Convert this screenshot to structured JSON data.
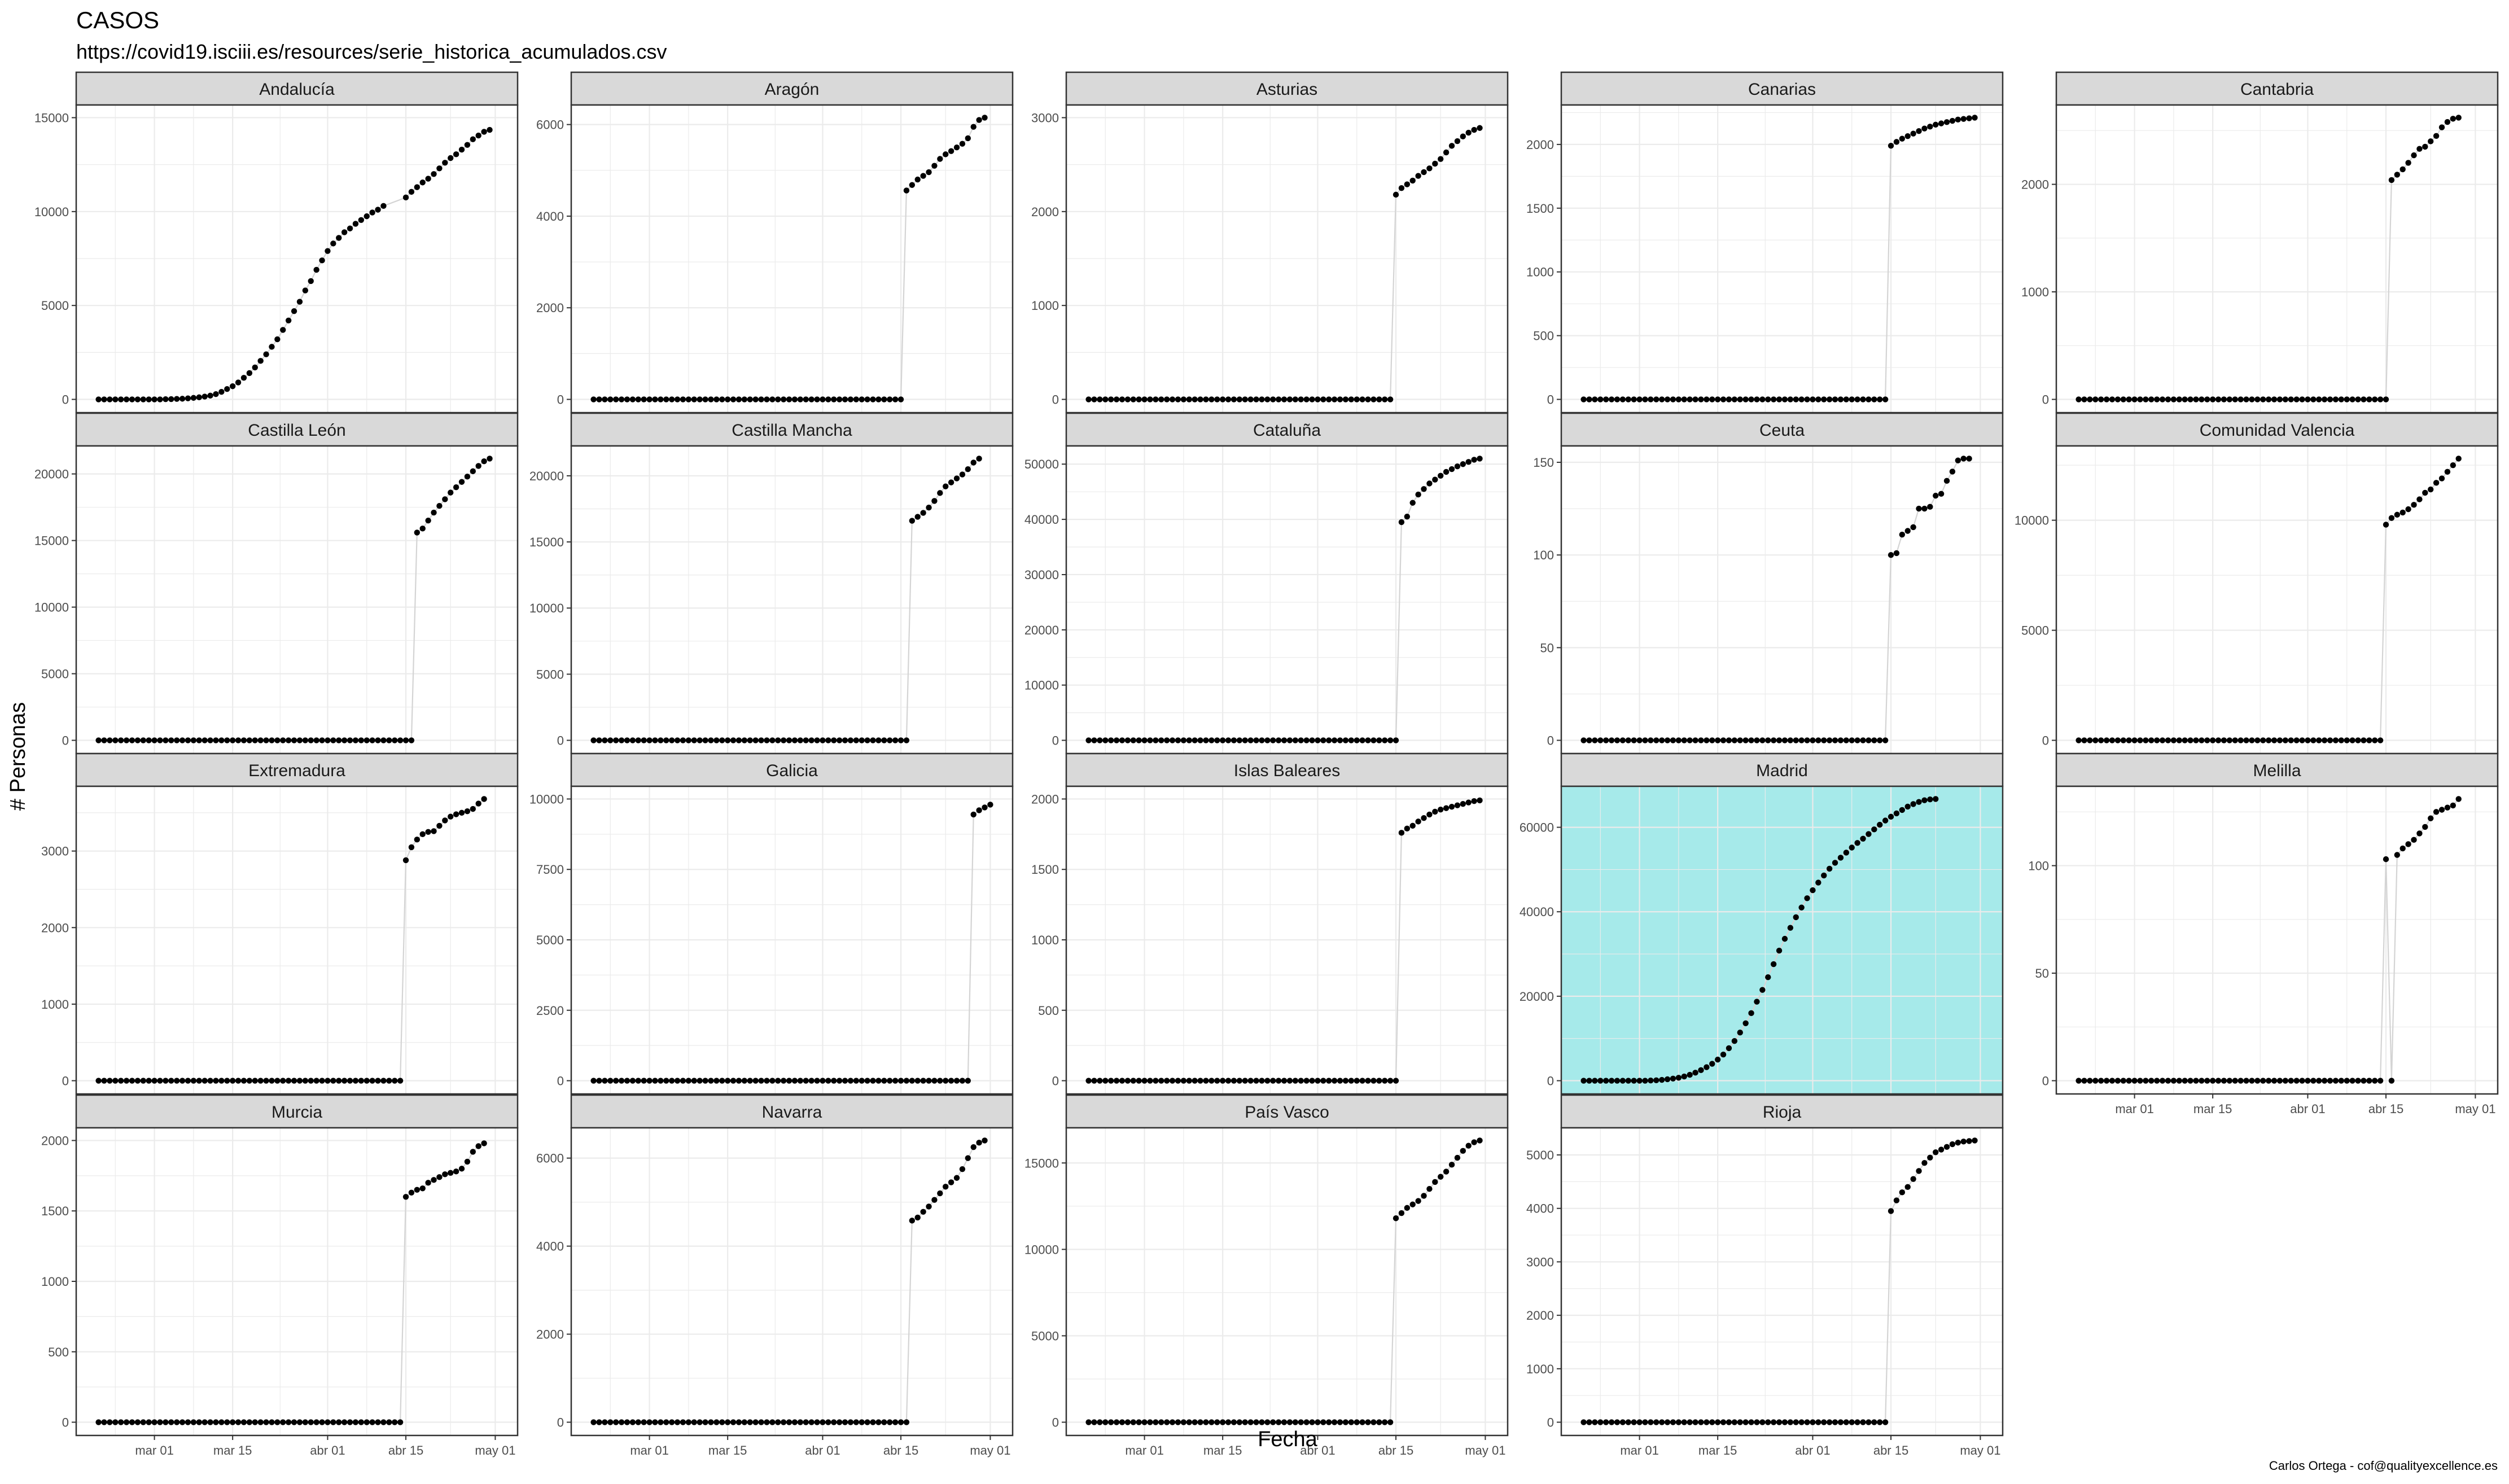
{
  "figure": {
    "title": "CASOS",
    "subtitle": "https://covid19.isciii.es/resources/serie_historica_acumulados.csv",
    "xlabel": "Fecha",
    "ylabel": "# Personas",
    "caption": "Carlos Ortega - cof@qualityexcellence.es",
    "x_ticks": [
      "mar 01",
      "mar 15",
      "abr 01",
      "abr 15",
      "may 01"
    ],
    "colors": {
      "strip_bg": "#d9d9d9",
      "panel_border": "#333333",
      "grid": "#ebebeb",
      "point": "#000000",
      "line": "#d4d4d4",
      "highlight_bg": "#a6eaea"
    }
  },
  "chart_data": [
    {
      "type": "scatter",
      "facet": "Andalucía",
      "date_start": "2020-02-20",
      "date_end": "2020-05-02",
      "jump_date": "2020-04-15",
      "ylim": [
        0,
        15000
      ],
      "y_ticks": [
        0,
        5000,
        10000,
        15000
      ],
      "pre_start": "2020-02-20",
      "pre_values": [
        0,
        0,
        0,
        0,
        0,
        0,
        0,
        0,
        0,
        0,
        0,
        0,
        10,
        15,
        25,
        35,
        55,
        80,
        110,
        150,
        200,
        280,
        400,
        550,
        700,
        900,
        1150,
        1400,
        1700,
        2050,
        2400,
        2800,
        3200,
        3700,
        4200,
        4700,
        5200,
        5800,
        6300,
        6900,
        7400,
        7900,
        8300,
        8600,
        8900,
        9100,
        9350,
        9550,
        9750,
        9950,
        10100,
        10300
      ],
      "post_start": "2020-04-15",
      "post_values": [
        10750,
        11050,
        11300,
        11550,
        11750,
        12000,
        12300,
        12600,
        12850,
        13050,
        13300,
        13550,
        13850,
        14050,
        14250,
        14350
      ]
    },
    {
      "type": "scatter",
      "facet": "Aragón",
      "date_start": "2020-02-20",
      "date_end": "2020-05-02",
      "jump_date": "2020-04-16",
      "ylim": [
        0,
        6000
      ],
      "y_ticks": [
        0,
        2000,
        4000,
        6000
      ],
      "post_start": "2020-04-16",
      "post_values": [
        4560,
        4680,
        4800,
        4880,
        4960,
        5100,
        5250,
        5350,
        5420,
        5500,
        5580,
        5700,
        5950,
        6100,
        6150
      ]
    },
    {
      "type": "scatter",
      "facet": "Asturias",
      "date_start": "2020-02-20",
      "date_end": "2020-05-02",
      "jump_date": "2020-04-15",
      "ylim": [
        0,
        3000
      ],
      "y_ticks": [
        0,
        1000,
        2000,
        3000
      ],
      "post_start": "2020-04-15",
      "post_values": [
        2180,
        2250,
        2290,
        2330,
        2380,
        2420,
        2460,
        2510,
        2560,
        2630,
        2700,
        2750,
        2800,
        2840,
        2870,
        2890
      ]
    },
    {
      "type": "scatter",
      "facet": "Canarias",
      "date_start": "2020-02-20",
      "date_end": "2020-05-02",
      "jump_date": "2020-04-15",
      "ylim": [
        0,
        2000
      ],
      "y_ticks": [
        0,
        500,
        1000,
        1500,
        2000
      ],
      "post_start": "2020-04-15",
      "post_values": [
        1990,
        2020,
        2045,
        2065,
        2085,
        2105,
        2125,
        2140,
        2155,
        2165,
        2175,
        2185,
        2195,
        2200,
        2205,
        2210
      ]
    },
    {
      "type": "scatter",
      "facet": "Cantabria",
      "date_start": "2020-02-20",
      "date_end": "2020-05-02",
      "jump_date": "2020-04-16",
      "ylim": [
        0,
        2000
      ],
      "y_ticks": [
        0,
        1000,
        2000
      ],
      "post_start": "2020-04-16",
      "post_values": [
        2040,
        2090,
        2140,
        2200,
        2270,
        2330,
        2350,
        2400,
        2450,
        2530,
        2580,
        2610,
        2620
      ]
    },
    {
      "type": "scatter",
      "facet": "Castilla León",
      "date_start": "2020-02-20",
      "date_end": "2020-05-02",
      "jump_date": "2020-04-17",
      "ylim": [
        0,
        20000
      ],
      "y_ticks": [
        0,
        5000,
        10000,
        15000,
        20000
      ],
      "post_start": "2020-04-17",
      "post_values": [
        15600,
        15900,
        16500,
        17100,
        17600,
        18100,
        18600,
        19000,
        19400,
        19800,
        20200,
        20600,
        20950,
        21150
      ]
    },
    {
      "type": "scatter",
      "facet": "Castilla Mancha",
      "date_start": "2020-02-20",
      "date_end": "2020-05-02",
      "jump_date": "2020-04-17",
      "ylim": [
        0,
        20000
      ],
      "y_ticks": [
        0,
        5000,
        10000,
        15000,
        20000
      ],
      "post_start": "2020-04-17",
      "post_values": [
        16600,
        16900,
        17200,
        17600,
        18100,
        18700,
        19200,
        19500,
        19800,
        20100,
        20500,
        21000,
        21300
      ]
    },
    {
      "type": "scatter",
      "facet": "Cataluña",
      "date_start": "2020-02-20",
      "date_end": "2020-05-02",
      "jump_date": "2020-04-16",
      "ylim": [
        0,
        50000
      ],
      "y_ticks": [
        0,
        10000,
        20000,
        30000,
        40000,
        50000
      ],
      "post_start": "2020-04-16",
      "post_values": [
        39500,
        40500,
        43000,
        44500,
        45500,
        46500,
        47200,
        47900,
        48600,
        49100,
        49600,
        50000,
        50400,
        50800,
        51000
      ]
    },
    {
      "type": "scatter",
      "facet": "Ceuta",
      "date_start": "2020-02-20",
      "date_end": "2020-05-02",
      "jump_date": "2020-04-15",
      "ylim": [
        0,
        150
      ],
      "y_ticks": [
        0,
        50,
        100,
        150
      ],
      "post_start": "2020-04-15",
      "post_values": [
        100,
        101,
        111,
        113,
        115,
        125,
        125,
        126,
        132,
        133,
        140,
        145,
        151,
        152,
        152
      ]
    },
    {
      "type": "scatter",
      "facet": "Comunidad Valencia",
      "date_start": "2020-02-20",
      "date_end": "2020-05-02",
      "jump_date": "2020-04-15",
      "ylim": [
        0,
        10000
      ],
      "y_ticks": [
        0,
        5000,
        10000
      ],
      "post_start": "2020-04-15",
      "post_values": [
        9800,
        10100,
        10250,
        10350,
        10500,
        10700,
        10950,
        11250,
        11400,
        11700,
        11900,
        12200,
        12500,
        12800
      ]
    },
    {
      "type": "scatter",
      "facet": "Extremadura",
      "date_start": "2020-02-20",
      "date_end": "2020-05-02",
      "jump_date": "2020-04-15",
      "ylim": [
        0,
        3000
      ],
      "y_ticks": [
        0,
        1000,
        2000,
        3000
      ],
      "post_start": "2020-04-15",
      "post_values": [
        2880,
        3050,
        3150,
        3220,
        3250,
        3260,
        3330,
        3400,
        3450,
        3480,
        3500,
        3520,
        3550,
        3620,
        3680
      ]
    },
    {
      "type": "scatter",
      "facet": "Galicia",
      "date_start": "2020-02-20",
      "date_end": "2020-05-02",
      "jump_date": "2020-04-28",
      "ylim": [
        0,
        10000
      ],
      "y_ticks": [
        0,
        2500,
        5000,
        7500,
        10000
      ],
      "post_start": "2020-04-28",
      "post_values": [
        9450,
        9600,
        9700,
        9800
      ]
    },
    {
      "type": "scatter",
      "facet": "Islas Baleares",
      "date_start": "2020-02-20",
      "date_end": "2020-05-02",
      "jump_date": "2020-04-16",
      "ylim": [
        0,
        2000
      ],
      "y_ticks": [
        0,
        500,
        1000,
        1500,
        2000
      ],
      "post_start": "2020-04-16",
      "post_values": [
        1760,
        1790,
        1810,
        1840,
        1865,
        1890,
        1910,
        1925,
        1935,
        1945,
        1955,
        1965,
        1975,
        1985,
        1990
      ]
    },
    {
      "type": "scatter",
      "facet": "Madrid",
      "highlight": true,
      "date_start": "2020-02-20",
      "date_end": "2020-05-02",
      "ylim": [
        0,
        60000
      ],
      "y_ticks": [
        0,
        20000,
        40000,
        60000
      ],
      "pre_start": "2020-02-20",
      "pre_values": [
        0,
        0,
        0,
        0,
        0,
        0,
        0,
        0,
        0,
        0,
        0,
        0,
        50,
        100,
        200,
        350,
        500,
        700,
        1000,
        1400,
        1900,
        2500,
        3200,
        4000,
        5000,
        6200,
        7700,
        9400,
        11400,
        13600,
        16000,
        18700,
        21500,
        24500,
        27600,
        30800,
        33600,
        36200,
        38700,
        41000,
        43200,
        45100,
        46900,
        48600,
        50200,
        51600,
        52800,
        54000,
        55200,
        56300,
        57300,
        58400,
        59500,
        60600,
        61600,
        62500,
        63300,
        64100,
        64900,
        65500,
        66000,
        66400,
        66600,
        66700
      ],
      "post_start": "2020-04-25",
      "post_values": []
    },
    {
      "type": "scatter",
      "facet": "Melilla",
      "date_start": "2020-02-20",
      "date_end": "2020-05-02",
      "jump_date": "2020-04-15",
      "ylim": [
        0,
        100
      ],
      "y_ticks": [
        0,
        50,
        100
      ],
      "post_start": "2020-04-15",
      "post_values": [
        103,
        0,
        105,
        108,
        110,
        112,
        115,
        118,
        122,
        125,
        126,
        127,
        128,
        131
      ]
    },
    {
      "type": "scatter",
      "facet": "Murcia",
      "date_start": "2020-02-20",
      "date_end": "2020-05-02",
      "jump_date": "2020-04-15",
      "ylim": [
        0,
        2000
      ],
      "y_ticks": [
        0,
        500,
        1000,
        1500,
        2000
      ],
      "post_start": "2020-04-15",
      "post_values": [
        1600,
        1630,
        1650,
        1660,
        1700,
        1720,
        1740,
        1760,
        1770,
        1780,
        1800,
        1850,
        1920,
        1960,
        1980
      ]
    },
    {
      "type": "scatter",
      "facet": "Navarra",
      "date_start": "2020-02-20",
      "date_end": "2020-05-02",
      "jump_date": "2020-04-17",
      "ylim": [
        0,
        6000
      ],
      "y_ticks": [
        0,
        2000,
        4000,
        6000
      ],
      "post_start": "2020-04-17",
      "post_values": [
        4580,
        4650,
        4780,
        4900,
        5050,
        5200,
        5350,
        5450,
        5550,
        5750,
        6000,
        6250,
        6350,
        6400
      ]
    },
    {
      "type": "scatter",
      "facet": "País Vasco",
      "date_start": "2020-02-20",
      "date_end": "2020-05-02",
      "jump_date": "2020-04-15",
      "ylim": [
        0,
        15000
      ],
      "y_ticks": [
        0,
        5000,
        10000,
        15000
      ],
      "post_start": "2020-04-15",
      "post_values": [
        11800,
        12100,
        12400,
        12600,
        12800,
        13100,
        13500,
        13900,
        14200,
        14500,
        14900,
        15300,
        15700,
        16000,
        16200,
        16300
      ]
    },
    {
      "type": "scatter",
      "facet": "Rioja",
      "date_start": "2020-02-20",
      "date_end": "2020-05-02",
      "jump_date": "2020-04-15",
      "ylim": [
        0,
        5000
      ],
      "y_ticks": [
        0,
        1000,
        2000,
        3000,
        4000,
        5000
      ],
      "post_start": "2020-04-15",
      "post_values": [
        3950,
        4150,
        4300,
        4400,
        4550,
        4700,
        4850,
        4950,
        5050,
        5100,
        5150,
        5200,
        5230,
        5250,
        5260,
        5270
      ]
    }
  ]
}
